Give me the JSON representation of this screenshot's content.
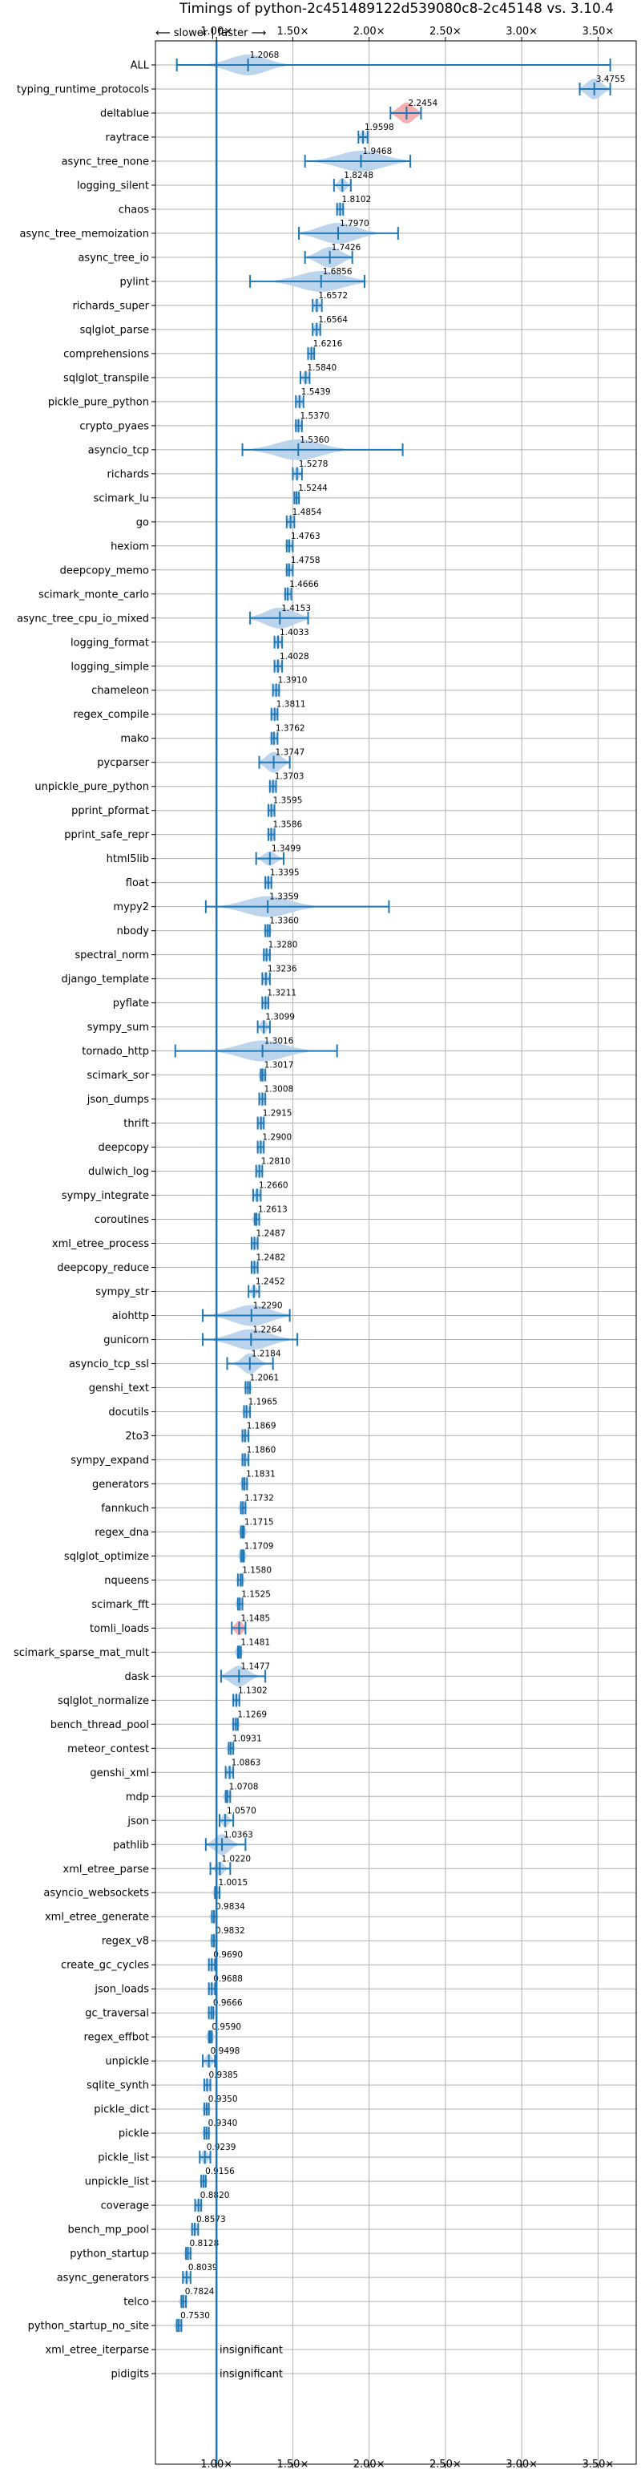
{
  "chart_data": {
    "type": "violin",
    "title": "Timings of python-2c451489122d539080c8-2c45148 vs. 3.10.4",
    "direction_note": "⟵ slower | faster ⟶",
    "xlim": [
      0.6,
      3.75
    ],
    "xticks": [
      1.0,
      1.5,
      2.0,
      2.5,
      3.0,
      3.5
    ],
    "xtick_labels": [
      "1.00×",
      "1.50×",
      "2.00×",
      "2.50×",
      "3.00×",
      "3.50×"
    ],
    "reference_line": 1.0,
    "insignificant_label": "insignificant",
    "colors": {
      "normal": "#1f77b4",
      "fill": "#b5d0ea",
      "regression": "#f4a6a6",
      "grid": "#b0b0b0"
    },
    "benchmarks": [
      {
        "name": "ALL",
        "median": 1.2068,
        "label": "1.2068",
        "min": 0.74,
        "max": 3.58,
        "spread": 0.25
      },
      {
        "name": "typing_runtime_protocols",
        "median": 3.4755,
        "label": "3.4755",
        "min": 3.38,
        "max": 3.58,
        "spread": 0.1
      },
      {
        "name": "deltablue",
        "median": 2.2454,
        "label": "2.2454",
        "min": 2.14,
        "max": 2.34,
        "spread": 0.1,
        "regression": true
      },
      {
        "name": "raytrace",
        "median": 1.9598,
        "label": "1.9598",
        "min": 1.93,
        "max": 1.99,
        "spread": 0.03
      },
      {
        "name": "async_tree_none",
        "median": 1.9468,
        "label": "1.9468",
        "min": 1.58,
        "max": 2.27,
        "spread": 0.3
      },
      {
        "name": "logging_silent",
        "median": 1.8248,
        "label": "1.8248",
        "min": 1.77,
        "max": 1.88,
        "spread": 0.05
      },
      {
        "name": "chaos",
        "median": 1.8102,
        "label": "1.8102",
        "min": 1.79,
        "max": 1.83,
        "spread": 0.02
      },
      {
        "name": "async_tree_memoization",
        "median": 1.797,
        "label": "1.7970",
        "min": 1.54,
        "max": 2.19,
        "spread": 0.25
      },
      {
        "name": "async_tree_io",
        "median": 1.7426,
        "label": "1.7426",
        "min": 1.58,
        "max": 1.89,
        "spread": 0.15
      },
      {
        "name": "pylint",
        "median": 1.6856,
        "label": "1.6856",
        "min": 1.22,
        "max": 1.97,
        "spread": 0.3
      },
      {
        "name": "richards_super",
        "median": 1.6572,
        "label": "1.6572",
        "min": 1.63,
        "max": 1.69,
        "spread": 0.03
      },
      {
        "name": "sqlglot_parse",
        "median": 1.6564,
        "label": "1.6564",
        "min": 1.63,
        "max": 1.68,
        "spread": 0.03
      },
      {
        "name": "comprehensions",
        "median": 1.6216,
        "label": "1.6216",
        "min": 1.6,
        "max": 1.64,
        "spread": 0.02
      },
      {
        "name": "sqlglot_transpile",
        "median": 1.584,
        "label": "1.5840",
        "min": 1.55,
        "max": 1.61,
        "spread": 0.03
      },
      {
        "name": "pickle_pure_python",
        "median": 1.5439,
        "label": "1.5439",
        "min": 1.52,
        "max": 1.57,
        "spread": 0.02
      },
      {
        "name": "crypto_pyaes",
        "median": 1.537,
        "label": "1.5370",
        "min": 1.52,
        "max": 1.56,
        "spread": 0.02
      },
      {
        "name": "asyncio_tcp",
        "median": 1.536,
        "label": "1.5360",
        "min": 1.17,
        "max": 2.22,
        "spread": 0.3
      },
      {
        "name": "richards",
        "median": 1.5278,
        "label": "1.5278",
        "min": 1.5,
        "max": 1.56,
        "spread": 0.03
      },
      {
        "name": "scimark_lu",
        "median": 1.5244,
        "label": "1.5244",
        "min": 1.51,
        "max": 1.54,
        "spread": 0.02
      },
      {
        "name": "go",
        "median": 1.4854,
        "label": "1.4854",
        "min": 1.46,
        "max": 1.51,
        "spread": 0.02
      },
      {
        "name": "hexiom",
        "median": 1.4763,
        "label": "1.4763",
        "min": 1.46,
        "max": 1.5,
        "spread": 0.02
      },
      {
        "name": "deepcopy_memo",
        "median": 1.4758,
        "label": "1.4758",
        "min": 1.46,
        "max": 1.5,
        "spread": 0.02
      },
      {
        "name": "scimark_monte_carlo",
        "median": 1.4666,
        "label": "1.4666",
        "min": 1.45,
        "max": 1.49,
        "spread": 0.02
      },
      {
        "name": "async_tree_cpu_io_mixed",
        "median": 1.4153,
        "label": "1.4153",
        "min": 1.22,
        "max": 1.6,
        "spread": 0.2
      },
      {
        "name": "logging_format",
        "median": 1.4033,
        "label": "1.4033",
        "min": 1.38,
        "max": 1.43,
        "spread": 0.02
      },
      {
        "name": "logging_simple",
        "median": 1.4028,
        "label": "1.4028",
        "min": 1.38,
        "max": 1.43,
        "spread": 0.02
      },
      {
        "name": "chameleon",
        "median": 1.391,
        "label": "1.3910",
        "min": 1.37,
        "max": 1.41,
        "spread": 0.02
      },
      {
        "name": "regex_compile",
        "median": 1.3811,
        "label": "1.3811",
        "min": 1.36,
        "max": 1.4,
        "spread": 0.02
      },
      {
        "name": "mako",
        "median": 1.3762,
        "label": "1.3762",
        "min": 1.36,
        "max": 1.4,
        "spread": 0.02
      },
      {
        "name": "pycparser",
        "median": 1.3747,
        "label": "1.3747",
        "min": 1.28,
        "max": 1.48,
        "spread": 0.1
      },
      {
        "name": "unpickle_pure_python",
        "median": 1.3703,
        "label": "1.3703",
        "min": 1.35,
        "max": 1.39,
        "spread": 0.02
      },
      {
        "name": "pprint_pformat",
        "median": 1.3595,
        "label": "1.3595",
        "min": 1.34,
        "max": 1.38,
        "spread": 0.02
      },
      {
        "name": "pprint_safe_repr",
        "median": 1.3586,
        "label": "1.3586",
        "min": 1.34,
        "max": 1.38,
        "spread": 0.02
      },
      {
        "name": "html5lib",
        "median": 1.3499,
        "label": "1.3499",
        "min": 1.26,
        "max": 1.44,
        "spread": 0.08
      },
      {
        "name": "float",
        "median": 1.3395,
        "label": "1.3395",
        "min": 1.32,
        "max": 1.36,
        "spread": 0.02
      },
      {
        "name": "mypy2",
        "median": 1.3359,
        "label": "1.3359",
        "min": 0.93,
        "max": 2.13,
        "spread": 0.3
      },
      {
        "name": "nbody",
        "median": 1.336,
        "label": "1.3360",
        "min": 1.32,
        "max": 1.35,
        "spread": 0.02
      },
      {
        "name": "spectral_norm",
        "median": 1.328,
        "label": "1.3280",
        "min": 1.31,
        "max": 1.35,
        "spread": 0.02
      },
      {
        "name": "django_template",
        "median": 1.3236,
        "label": "1.3236",
        "min": 1.3,
        "max": 1.35,
        "spread": 0.02
      },
      {
        "name": "pyflate",
        "median": 1.3211,
        "label": "1.3211",
        "min": 1.3,
        "max": 1.34,
        "spread": 0.02
      },
      {
        "name": "sympy_sum",
        "median": 1.3099,
        "label": "1.3099",
        "min": 1.27,
        "max": 1.35,
        "spread": 0.04
      },
      {
        "name": "tornado_http",
        "median": 1.3016,
        "label": "1.3016",
        "min": 0.73,
        "max": 1.79,
        "spread": 0.3
      },
      {
        "name": "scimark_sor",
        "median": 1.3017,
        "label": "1.3017",
        "min": 1.29,
        "max": 1.32,
        "spread": 0.02
      },
      {
        "name": "json_dumps",
        "median": 1.3008,
        "label": "1.3008",
        "min": 1.28,
        "max": 1.32,
        "spread": 0.02
      },
      {
        "name": "thrift",
        "median": 1.2915,
        "label": "1.2915",
        "min": 1.27,
        "max": 1.31,
        "spread": 0.02
      },
      {
        "name": "deepcopy",
        "median": 1.29,
        "label": "1.2900",
        "min": 1.27,
        "max": 1.31,
        "spread": 0.02
      },
      {
        "name": "dulwich_log",
        "median": 1.281,
        "label": "1.2810",
        "min": 1.26,
        "max": 1.3,
        "spread": 0.02
      },
      {
        "name": "sympy_integrate",
        "median": 1.266,
        "label": "1.2660",
        "min": 1.24,
        "max": 1.29,
        "spread": 0.02
      },
      {
        "name": "coroutines",
        "median": 1.2613,
        "label": "1.2613",
        "min": 1.25,
        "max": 1.28,
        "spread": 0.02
      },
      {
        "name": "xml_etree_process",
        "median": 1.2487,
        "label": "1.2487",
        "min": 1.23,
        "max": 1.27,
        "spread": 0.02
      },
      {
        "name": "deepcopy_reduce",
        "median": 1.2482,
        "label": "1.2482",
        "min": 1.23,
        "max": 1.27,
        "spread": 0.02
      },
      {
        "name": "sympy_str",
        "median": 1.2452,
        "label": "1.2452",
        "min": 1.21,
        "max": 1.28,
        "spread": 0.03
      },
      {
        "name": "aiohttp",
        "median": 1.229,
        "label": "1.2290",
        "min": 0.91,
        "max": 1.48,
        "spread": 0.25
      },
      {
        "name": "gunicorn",
        "median": 1.2264,
        "label": "1.2264",
        "min": 0.91,
        "max": 1.53,
        "spread": 0.25
      },
      {
        "name": "asyncio_tcp_ssl",
        "median": 1.2184,
        "label": "1.2184",
        "min": 1.07,
        "max": 1.37,
        "spread": 0.1
      },
      {
        "name": "genshi_text",
        "median": 1.2061,
        "label": "1.2061",
        "min": 1.19,
        "max": 1.22,
        "spread": 0.02
      },
      {
        "name": "docutils",
        "median": 1.1965,
        "label": "1.1965",
        "min": 1.18,
        "max": 1.22,
        "spread": 0.02
      },
      {
        "name": "2to3",
        "median": 1.1869,
        "label": "1.1869",
        "min": 1.17,
        "max": 1.21,
        "spread": 0.02
      },
      {
        "name": "sympy_expand",
        "median": 1.186,
        "label": "1.1860",
        "min": 1.17,
        "max": 1.21,
        "spread": 0.02
      },
      {
        "name": "generators",
        "median": 1.1831,
        "label": "1.1831",
        "min": 1.17,
        "max": 1.2,
        "spread": 0.02
      },
      {
        "name": "fannkuch",
        "median": 1.1732,
        "label": "1.1732",
        "min": 1.16,
        "max": 1.19,
        "spread": 0.02
      },
      {
        "name": "regex_dna",
        "median": 1.1715,
        "label": "1.1715",
        "min": 1.16,
        "max": 1.18,
        "spread": 0.02
      },
      {
        "name": "sqlglot_optimize",
        "median": 1.1709,
        "label": "1.1709",
        "min": 1.16,
        "max": 1.18,
        "spread": 0.02
      },
      {
        "name": "nqueens",
        "median": 1.158,
        "label": "1.1580",
        "min": 1.14,
        "max": 1.17,
        "spread": 0.02
      },
      {
        "name": "scimark_fft",
        "median": 1.1525,
        "label": "1.1525",
        "min": 1.14,
        "max": 1.17,
        "spread": 0.02
      },
      {
        "name": "tomli_loads",
        "median": 1.1485,
        "label": "1.1485",
        "min": 1.1,
        "max": 1.19,
        "spread": 0.05,
        "regression": true
      },
      {
        "name": "scimark_sparse_mat_mult",
        "median": 1.1481,
        "label": "1.1481",
        "min": 1.14,
        "max": 1.16,
        "spread": 0.02
      },
      {
        "name": "dask",
        "median": 1.1477,
        "label": "1.1477",
        "min": 1.03,
        "max": 1.32,
        "spread": 0.12
      },
      {
        "name": "sqlglot_normalize",
        "median": 1.1302,
        "label": "1.1302",
        "min": 1.11,
        "max": 1.15,
        "spread": 0.02
      },
      {
        "name": "bench_thread_pool",
        "median": 1.1269,
        "label": "1.1269",
        "min": 1.11,
        "max": 1.14,
        "spread": 0.02
      },
      {
        "name": "meteor_contest",
        "median": 1.0931,
        "label": "1.0931",
        "min": 1.08,
        "max": 1.11,
        "spread": 0.02
      },
      {
        "name": "genshi_xml",
        "median": 1.0863,
        "label": "1.0863",
        "min": 1.06,
        "max": 1.11,
        "spread": 0.03
      },
      {
        "name": "mdp",
        "median": 1.0708,
        "label": "1.0708",
        "min": 1.06,
        "max": 1.09,
        "spread": 0.02
      },
      {
        "name": "json",
        "median": 1.057,
        "label": "1.0570",
        "min": 1.02,
        "max": 1.11,
        "spread": 0.04
      },
      {
        "name": "pathlib",
        "median": 1.0363,
        "label": "1.0363",
        "min": 0.93,
        "max": 1.19,
        "spread": 0.1
      },
      {
        "name": "xml_etree_parse",
        "median": 1.022,
        "label": "1.0220",
        "min": 0.96,
        "max": 1.09,
        "spread": 0.05
      },
      {
        "name": "asyncio_websockets",
        "median": 1.0015,
        "label": "1.0015",
        "min": 0.99,
        "max": 1.02,
        "spread": 0.02
      },
      {
        "name": "xml_etree_generate",
        "median": 0.9834,
        "label": "0.9834",
        "min": 0.97,
        "max": 1.0,
        "spread": 0.02
      },
      {
        "name": "regex_v8",
        "median": 0.9832,
        "label": "0.9832",
        "min": 0.97,
        "max": 1.0,
        "spread": 0.02
      },
      {
        "name": "create_gc_cycles",
        "median": 0.969,
        "label": "0.9690",
        "min": 0.95,
        "max": 0.99,
        "spread": 0.02
      },
      {
        "name": "json_loads",
        "median": 0.9688,
        "label": "0.9688",
        "min": 0.95,
        "max": 0.99,
        "spread": 0.02
      },
      {
        "name": "gc_traversal",
        "median": 0.9666,
        "label": "0.9666",
        "min": 0.95,
        "max": 0.98,
        "spread": 0.02
      },
      {
        "name": "regex_effbot",
        "median": 0.959,
        "label": "0.9590",
        "min": 0.95,
        "max": 0.97,
        "spread": 0.02
      },
      {
        "name": "unpickle",
        "median": 0.9498,
        "label": "0.9498",
        "min": 0.91,
        "max": 0.99,
        "spread": 0.04
      },
      {
        "name": "sqlite_synth",
        "median": 0.9385,
        "label": "0.9385",
        "min": 0.92,
        "max": 0.96,
        "spread": 0.02
      },
      {
        "name": "pickle_dict",
        "median": 0.935,
        "label": "0.9350",
        "min": 0.92,
        "max": 0.95,
        "spread": 0.02
      },
      {
        "name": "pickle",
        "median": 0.934,
        "label": "0.9340",
        "min": 0.92,
        "max": 0.95,
        "spread": 0.02
      },
      {
        "name": "pickle_list",
        "median": 0.9239,
        "label": "0.9239",
        "min": 0.89,
        "max": 0.96,
        "spread": 0.04
      },
      {
        "name": "unpickle_list",
        "median": 0.9156,
        "label": "0.9156",
        "min": 0.9,
        "max": 0.93,
        "spread": 0.02
      },
      {
        "name": "coverage",
        "median": 0.882,
        "label": "0.8820",
        "min": 0.86,
        "max": 0.9,
        "spread": 0.02
      },
      {
        "name": "bench_mp_pool",
        "median": 0.8573,
        "label": "0.8573",
        "min": 0.84,
        "max": 0.88,
        "spread": 0.02
      },
      {
        "name": "python_startup",
        "median": 0.8128,
        "label": "0.8128",
        "min": 0.8,
        "max": 0.83,
        "spread": 0.02
      },
      {
        "name": "async_generators",
        "median": 0.8039,
        "label": "0.8039",
        "min": 0.78,
        "max": 0.83,
        "spread": 0.02
      },
      {
        "name": "telco",
        "median": 0.7824,
        "label": "0.7824",
        "min": 0.77,
        "max": 0.8,
        "spread": 0.02
      },
      {
        "name": "python_startup_no_site",
        "median": 0.753,
        "label": "0.7530",
        "min": 0.74,
        "max": 0.77,
        "spread": 0.02
      },
      {
        "name": "xml_etree_iterparse",
        "insignificant": true
      },
      {
        "name": "pidigits",
        "insignificant": true
      }
    ]
  }
}
